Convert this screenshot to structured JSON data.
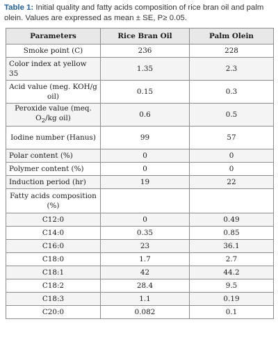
{
  "caption": {
    "label": "Table 1:",
    "text": " Initial quality and fatty acids composition of rice bran oil and palm olein. Values are expressed as mean ± SE, P≥ 0.05."
  },
  "table": {
    "headers": [
      "Parameters",
      "Rice Bran Oil",
      "Palm Olein"
    ],
    "rows": [
      {
        "param": "Smoke point (C)",
        "rice": "236",
        "palm": "228"
      },
      {
        "param": "Color index at yellow 35",
        "rice": "1.35",
        "palm": "2.3"
      },
      {
        "param": "Acid value (meg. KOH/g oil)",
        "rice": "0.15",
        "palm": "0.3"
      },
      {
        "param_pre": "Peroxide value (meq. O",
        "param_sub": "2",
        "param_post": "/kg oil)",
        "rice": "0.6",
        "palm": "0.5"
      },
      {
        "param": "Iodine number (Hanus)",
        "rice": "99",
        "palm": "57"
      },
      {
        "param": "Polar content (%)",
        "rice": "0",
        "palm": "0"
      },
      {
        "param": "Polymer content (%)",
        "rice": "0",
        "palm": "0"
      },
      {
        "param": "Induction period (hr)",
        "rice": "19",
        "palm": "22"
      },
      {
        "param": "Fatty acids composition (%)",
        "rice": "",
        "palm": ""
      },
      {
        "param": "C12:0",
        "rice": "0",
        "palm": "0.49"
      },
      {
        "param": "C14:0",
        "rice": "0.35",
        "palm": "0.85"
      },
      {
        "param": "C16:0",
        "rice": "23",
        "palm": "36.1"
      },
      {
        "param": "C18:0",
        "rice": "1.7",
        "palm": "2.7"
      },
      {
        "param": "C18:1",
        "rice": "42",
        "palm": "44.2"
      },
      {
        "param": "C18:2",
        "rice": "28.4",
        "palm": "9.5"
      },
      {
        "param": "C18:3",
        "rice": "1.1",
        "palm": "0.19"
      },
      {
        "param": "C20:0",
        "rice": "0.082",
        "palm": "0.1"
      }
    ]
  }
}
